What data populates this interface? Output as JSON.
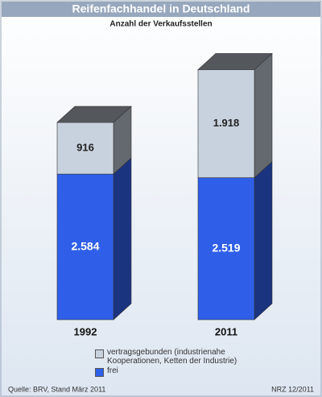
{
  "chart_data": {
    "type": "bar",
    "stacked": true,
    "title": "Reifenfachhandel in Deutschland",
    "subtitle": "Anzahl der Verkaufsstellen",
    "categories": [
      "1992",
      "2011"
    ],
    "series": [
      {
        "name": "frei",
        "color": "#2f5fe8",
        "values": [
          2584,
          2519
        ],
        "value_labels": [
          "2.584",
          "2.519"
        ]
      },
      {
        "name": "vertragsgebunden (industrienahe Kooperationen, Ketten der Industrie)",
        "color": "#c8d2de",
        "values": [
          916,
          1918
        ],
        "value_labels": [
          "916",
          "1.918"
        ]
      }
    ],
    "source": "Quelle: BRV, Stand März 2011",
    "credit": "NRZ 12/2011"
  }
}
